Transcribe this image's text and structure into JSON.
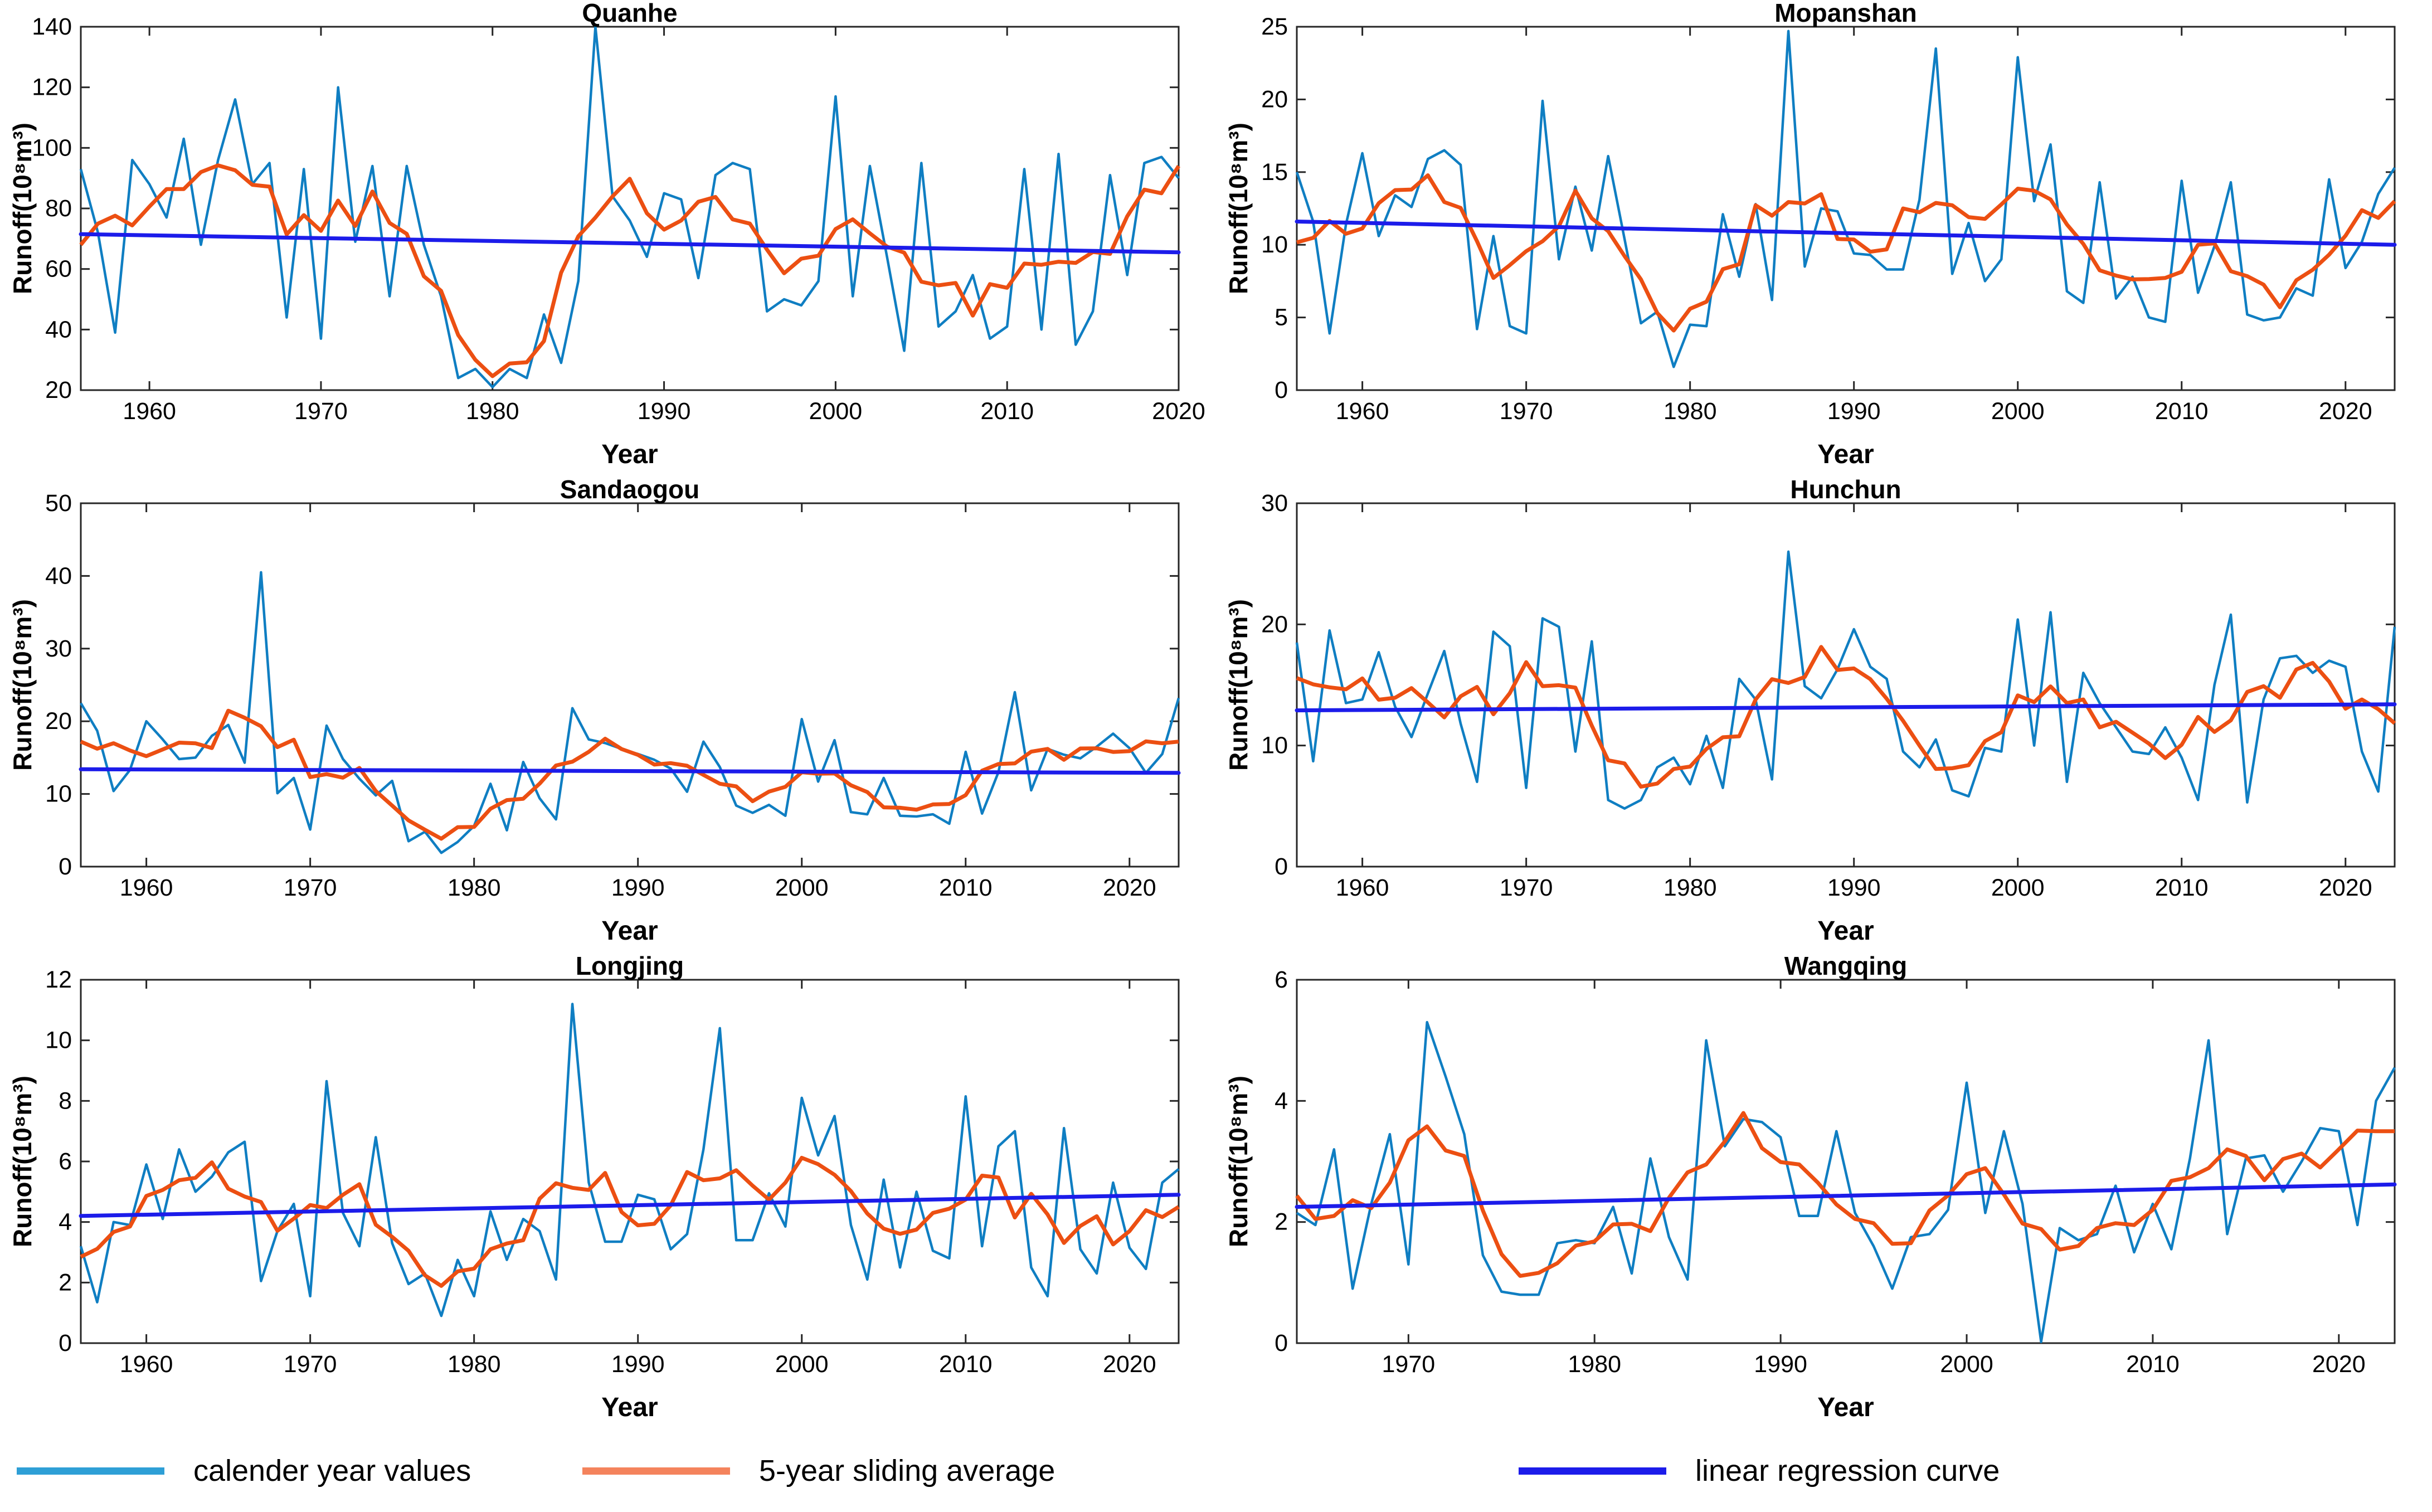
{
  "shared": {
    "xlabel": "Year",
    "ylabel": "Runoff(10⁸m³)"
  },
  "colors": {
    "calendar": "#0f7ec2",
    "sliding": "#ec4f12",
    "regression": "#1c1cea",
    "axis": "#262626",
    "text": "#000000",
    "background": "#ffffff"
  },
  "legend": {
    "items": [
      {
        "label": "calender year values",
        "color": "#2e9fd6",
        "series": "calendar"
      },
      {
        "label": "5-year sliding average",
        "color": "#f4835c",
        "series": "sliding"
      },
      {
        "label": "linear regression curve",
        "color": "#1c1cea",
        "series": "regression"
      }
    ]
  },
  "chart_data": [
    {
      "type": "line",
      "title": "Quanhe",
      "xlabel": "Year",
      "ylabel": "Runoff(10⁸m³)",
      "start_year": 1956,
      "x_range": [
        1956,
        2020
      ],
      "y_range": [
        20,
        140
      ],
      "x_ticks": [
        1960,
        1970,
        1980,
        1990,
        2000,
        2010,
        2020
      ],
      "y_ticks": [
        20,
        40,
        60,
        80,
        100,
        120,
        140
      ],
      "series": [
        {
          "name": "calender year values",
          "values": [
            93,
            72,
            39,
            96,
            88,
            77,
            103,
            68,
            96,
            116,
            88,
            95,
            44,
            93,
            37,
            120,
            69,
            94,
            51,
            94,
            68,
            51,
            24,
            27,
            21,
            27,
            24,
            45,
            29,
            56,
            140,
            84,
            76,
            64,
            85,
            83,
            57,
            91,
            95,
            93,
            46,
            50,
            48,
            56,
            117,
            51,
            94,
            64,
            33,
            95,
            41,
            46,
            58,
            37,
            41,
            93,
            40,
            98,
            35,
            46,
            91,
            58,
            95,
            97,
            90
          ]
        },
        {
          "name": "5-year sliding average",
          "method": "centered 5-year moving average of calender year values"
        },
        {
          "name": "linear regression curve",
          "endpoints": [
            71.5,
            65.5
          ]
        }
      ]
    },
    {
      "type": "line",
      "title": "Mopanshan",
      "xlabel": "Year",
      "ylabel": "Runoff(10⁸m³)",
      "start_year": 1956,
      "x_range": [
        1956,
        2023
      ],
      "y_range": [
        0,
        25
      ],
      "x_ticks": [
        1960,
        1970,
        1980,
        1990,
        2000,
        2010,
        2020
      ],
      "y_ticks": [
        0,
        5,
        10,
        15,
        20,
        25
      ],
      "series": [
        {
          "name": "calender year values",
          "values": [
            15.0,
            11.6,
            3.9,
            11.4,
            16.3,
            10.6,
            13.4,
            12.6,
            15.9,
            16.5,
            15.5,
            4.2,
            10.6,
            4.4,
            3.9,
            19.9,
            9.0,
            14.0,
            9.6,
            16.1,
            10.4,
            4.6,
            5.4,
            1.6,
            4.5,
            4.4,
            12.1,
            7.8,
            12.8,
            6.2,
            24.7,
            8.5,
            12.5,
            12.3,
            9.4,
            9.3,
            8.3,
            8.3,
            13.1,
            23.5,
            8.0,
            11.5,
            7.5,
            9.0,
            22.9,
            13.0,
            16.9,
            6.8,
            6.0,
            14.3,
            6.3,
            7.8,
            5.0,
            4.7,
            14.4,
            6.7,
            9.9,
            14.3,
            5.2,
            4.8,
            5.0,
            7.0,
            6.5,
            14.5,
            8.4,
            10.2,
            13.5,
            15.3
          ]
        },
        {
          "name": "5-year sliding average",
          "method": "centered 5-year moving average of calender year values"
        },
        {
          "name": "linear regression curve",
          "endpoints": [
            11.6,
            10.0
          ]
        }
      ]
    },
    {
      "type": "line",
      "title": "Sandaogou",
      "xlabel": "Year",
      "ylabel": "Runoff(10⁸m³)",
      "start_year": 1956,
      "x_range": [
        1956,
        2023
      ],
      "y_range": [
        0,
        50
      ],
      "x_ticks": [
        1960,
        1970,
        1980,
        1990,
        2000,
        2010,
        2020
      ],
      "y_ticks": [
        0,
        10,
        20,
        30,
        40,
        50
      ],
      "series": [
        {
          "name": "calender year values",
          "values": [
            22.5,
            18.7,
            10.4,
            13.3,
            20.0,
            17.5,
            14.8,
            15.0,
            18.0,
            19.5,
            14.3,
            40.5,
            10.1,
            12.2,
            5.1,
            19.4,
            14.8,
            12.1,
            9.8,
            11.8,
            3.5,
            4.8,
            1.9,
            3.4,
            5.6,
            11.4,
            5.0,
            14.4,
            9.4,
            6.5,
            21.8,
            17.5,
            17.0,
            16.2,
            15.5,
            14.7,
            13.5,
            10.3,
            17.2,
            13.7,
            8.4,
            7.4,
            8.5,
            7.0,
            20.3,
            11.7,
            17.4,
            7.5,
            7.2,
            12.2,
            7.0,
            6.9,
            7.2,
            5.9,
            15.8,
            7.3,
            13.0,
            24.0,
            10.5,
            16.2,
            15.4,
            14.9,
            16.5,
            18.3,
            16.3,
            12.9,
            15.5,
            23.2
          ]
        },
        {
          "name": "5-year sliding average",
          "method": "centered 5-year moving average of calender year values"
        },
        {
          "name": "linear regression curve",
          "endpoints": [
            13.4,
            12.9
          ]
        }
      ]
    },
    {
      "type": "line",
      "title": "Hunchun",
      "xlabel": "Year",
      "ylabel": "Runoff(10⁸m³)",
      "start_year": 1956,
      "x_range": [
        1956,
        2023
      ],
      "y_range": [
        0,
        30
      ],
      "x_ticks": [
        1960,
        1970,
        1980,
        1990,
        2000,
        2010,
        2020
      ],
      "y_ticks": [
        0,
        10,
        20,
        30
      ],
      "series": [
        {
          "name": "calender year values",
          "values": [
            18.5,
            8.7,
            19.5,
            13.5,
            13.8,
            17.7,
            13.2,
            10.7,
            14.3,
            17.8,
            11.8,
            7.0,
            19.4,
            18.2,
            6.5,
            20.5,
            19.8,
            9.5,
            18.6,
            5.5,
            4.8,
            5.5,
            8.2,
            9.0,
            6.8,
            10.8,
            6.5,
            15.5,
            13.8,
            7.2,
            26.0,
            14.9,
            13.9,
            16.3,
            19.6,
            16.5,
            15.5,
            9.5,
            8.2,
            10.5,
            6.3,
            5.8,
            9.8,
            9.5,
            20.4,
            10.0,
            21.0,
            7.0,
            16.0,
            13.5,
            11.5,
            9.5,
            9.3,
            11.5,
            9.0,
            5.5,
            15.0,
            20.8,
            5.3,
            13.8,
            17.2,
            17.4,
            16.0,
            17.0,
            16.5,
            9.5,
            6.2,
            19.8
          ]
        },
        {
          "name": "5-year sliding average",
          "method": "centered 5-year moving average of calender year values"
        },
        {
          "name": "linear regression curve",
          "endpoints": [
            12.9,
            13.4
          ]
        }
      ]
    },
    {
      "type": "line",
      "title": "Longjing",
      "xlabel": "Year",
      "ylabel": "Runoff(10⁸m³)",
      "start_year": 1956,
      "x_range": [
        1956,
        2023
      ],
      "y_range": [
        0,
        12
      ],
      "x_ticks": [
        1960,
        1970,
        1980,
        1990,
        2000,
        2010,
        2020
      ],
      "y_ticks": [
        0,
        2,
        4,
        6,
        8,
        10,
        12
      ],
      "series": [
        {
          "name": "calender year values",
          "values": [
            3.2,
            1.35,
            4.0,
            3.9,
            5.9,
            4.1,
            6.4,
            5.0,
            5.5,
            6.3,
            6.65,
            2.05,
            3.7,
            4.6,
            1.55,
            8.65,
            4.3,
            3.2,
            6.8,
            3.3,
            1.95,
            2.3,
            0.9,
            2.75,
            1.55,
            4.35,
            2.75,
            4.1,
            3.7,
            2.1,
            11.2,
            5.3,
            3.35,
            3.35,
            4.9,
            4.75,
            3.1,
            3.6,
            6.4,
            10.4,
            3.4,
            3.4,
            4.95,
            3.85,
            8.1,
            6.2,
            7.5,
            3.9,
            2.1,
            5.4,
            2.5,
            5.0,
            3.05,
            2.8,
            8.15,
            3.2,
            6.5,
            7.0,
            2.5,
            1.55,
            7.1,
            3.1,
            2.3,
            5.3,
            3.15,
            2.45,
            5.3,
            5.75
          ]
        },
        {
          "name": "5-year sliding average",
          "method": "centered 5-year moving average of calender year values"
        },
        {
          "name": "linear regression curve",
          "endpoints": [
            4.2,
            4.9
          ]
        }
      ]
    },
    {
      "type": "line",
      "title": "Wangqing",
      "xlabel": "Year",
      "ylabel": "Runoff(10⁸m³)",
      "start_year": 1964,
      "x_range": [
        1964,
        2023
      ],
      "y_range": [
        0,
        6
      ],
      "x_ticks": [
        1970,
        1980,
        1990,
        2000,
        2010,
        2020
      ],
      "y_ticks": [
        0,
        2,
        4,
        6
      ],
      "series": [
        {
          "name": "calender year values",
          "values": [
            2.15,
            1.95,
            3.2,
            0.9,
            2.3,
            3.45,
            1.3,
            5.3,
            4.4,
            3.45,
            1.45,
            0.85,
            0.8,
            0.8,
            1.65,
            1.7,
            1.65,
            2.25,
            1.15,
            3.05,
            1.75,
            1.05,
            5.0,
            3.25,
            3.7,
            3.65,
            3.4,
            2.1,
            2.1,
            3.5,
            2.15,
            1.6,
            0.9,
            1.75,
            1.8,
            2.2,
            4.3,
            2.15,
            3.5,
            2.3,
            0.02,
            1.9,
            1.7,
            1.8,
            2.6,
            1.5,
            2.3,
            1.55,
            3.05,
            5.0,
            1.8,
            3.05,
            3.1,
            2.5,
            3.0,
            3.55,
            3.5,
            1.95,
            4.0,
            4.55
          ]
        },
        {
          "name": "5-year sliding average",
          "method": "centered 5-year moving average of calender year values"
        },
        {
          "name": "linear regression curve",
          "endpoints": [
            2.25,
            2.62
          ]
        }
      ]
    }
  ]
}
